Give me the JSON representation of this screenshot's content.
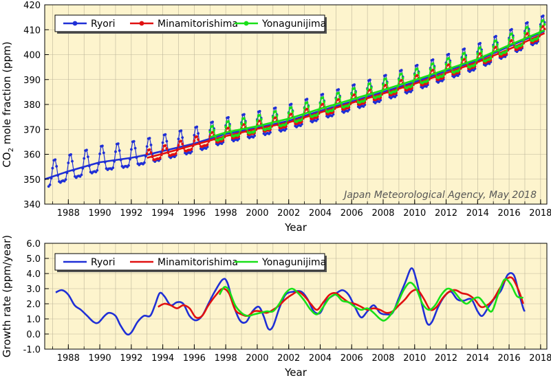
{
  "chart_data": [
    {
      "type": "line",
      "ylabel_prefix": "CO",
      "ylabel_sub": "2",
      "ylabel_suffix": " mole fraction (ppm)",
      "xlabel": "Year",
      "annotation": "Japan Meteorological Agency, May 2018",
      "xlim": [
        1986.5,
        2018.4
      ],
      "ylim": [
        340,
        420
      ],
      "xticks": [
        1988,
        1990,
        1992,
        1994,
        1996,
        1998,
        2000,
        2002,
        2004,
        2006,
        2008,
        2010,
        2012,
        2014,
        2016,
        2018
      ],
      "yticks": [
        340,
        350,
        360,
        370,
        380,
        390,
        400,
        410,
        420
      ],
      "grid": true,
      "legend_position": "top-left",
      "series": [
        {
          "name": "Ryori",
          "color": "#1f2fd6",
          "marker": "circle",
          "start": 1986.75,
          "end": 2018.25,
          "trend": [
            [
              1986.5,
              350.0
            ],
            [
              1988.0,
              353.2
            ],
            [
              1990.0,
              356.8
            ],
            [
              1992.0,
              358.6
            ],
            [
              1993.0,
              359.8
            ],
            [
              1994.0,
              361.3
            ],
            [
              1996.0,
              364.3
            ],
            [
              1998.0,
              368.2
            ],
            [
              2000.0,
              370.6
            ],
            [
              2002.0,
              373.4
            ],
            [
              2004.0,
              377.4
            ],
            [
              2006.0,
              381.2
            ],
            [
              2008.0,
              385.0
            ],
            [
              2010.0,
              389.0
            ],
            [
              2012.0,
              393.4
            ],
            [
              2014.0,
              397.7
            ],
            [
              2016.0,
              403.3
            ],
            [
              2018.25,
              409.4
            ]
          ],
          "amplitude": 6.8
        },
        {
          "name": "Minamitorishima",
          "color": "#e01010",
          "marker": "circle",
          "start": 1993.0,
          "end": 2018.25,
          "trend": [
            [
              1993.0,
              358.6
            ],
            [
              1994.0,
              360.2
            ],
            [
              1996.0,
              363.8
            ],
            [
              1998.0,
              367.3
            ],
            [
              2000.0,
              370.2
            ],
            [
              2002.0,
              372.8
            ],
            [
              2004.0,
              376.8
            ],
            [
              2006.0,
              380.6
            ],
            [
              2008.0,
              384.4
            ],
            [
              2010.0,
              388.3
            ],
            [
              2012.0,
              392.6
            ],
            [
              2014.0,
              397.0
            ],
            [
              2016.0,
              402.2
            ],
            [
              2018.25,
              408.6
            ]
          ],
          "amplitude": 3.2
        },
        {
          "name": "Yonagunijima",
          "color": "#18e018",
          "marker": "circle",
          "start": 1997.0,
          "end": 2018.25,
          "trend": [
            [
              1997.0,
              366.8
            ],
            [
              1998.0,
              368.8
            ],
            [
              2000.0,
              371.3
            ],
            [
              2002.0,
              374.3
            ],
            [
              2004.0,
              378.3
            ],
            [
              2006.0,
              382.0
            ],
            [
              2008.0,
              385.8
            ],
            [
              2010.0,
              389.8
            ],
            [
              2012.0,
              394.0
            ],
            [
              2014.0,
              398.2
            ],
            [
              2016.0,
              403.8
            ],
            [
              2018.25,
              409.8
            ]
          ],
          "amplitude": 4.4
        }
      ]
    },
    {
      "type": "line",
      "ylabel": "Growth rate (ppm/year)",
      "xlabel": "Year",
      "xlim": [
        1986.5,
        2018.4
      ],
      "ylim": [
        -1.0,
        6.0
      ],
      "xticks": [
        1988,
        1990,
        1992,
        1994,
        1996,
        1998,
        2000,
        2002,
        2004,
        2006,
        2008,
        2010,
        2012,
        2014,
        2016,
        2018
      ],
      "yticks": [
        -1.0,
        0.0,
        1.0,
        2.0,
        3.0,
        4.0,
        5.0,
        6.0
      ],
      "grid": true,
      "legend_position": "top-left",
      "series": [
        {
          "name": "Ryori",
          "color": "#1f2fd6",
          "points": [
            [
              1987.2,
              2.75
            ],
            [
              1987.6,
              2.9
            ],
            [
              1988.0,
              2.6
            ],
            [
              1988.4,
              1.9
            ],
            [
              1988.8,
              1.6
            ],
            [
              1989.2,
              1.2
            ],
            [
              1989.6,
              0.8
            ],
            [
              1989.9,
              0.75
            ],
            [
              1990.3,
              1.2
            ],
            [
              1990.6,
              1.4
            ],
            [
              1991.0,
              1.2
            ],
            [
              1991.3,
              0.6
            ],
            [
              1991.7,
              0.0
            ],
            [
              1992.0,
              0.1
            ],
            [
              1992.4,
              0.8
            ],
            [
              1992.8,
              1.2
            ],
            [
              1993.2,
              1.2
            ],
            [
              1993.5,
              1.9
            ],
            [
              1993.8,
              2.7
            ],
            [
              1994.1,
              2.5
            ],
            [
              1994.5,
              1.9
            ],
            [
              1994.9,
              2.1
            ],
            [
              1995.3,
              2.0
            ],
            [
              1995.7,
              1.2
            ],
            [
              1996.1,
              0.9
            ],
            [
              1996.5,
              1.2
            ],
            [
              1996.9,
              2.0
            ],
            [
              1997.3,
              2.8
            ],
            [
              1997.8,
              3.6
            ],
            [
              1998.1,
              3.4
            ],
            [
              1998.5,
              1.9
            ],
            [
              1998.9,
              0.9
            ],
            [
              1999.3,
              0.8
            ],
            [
              1999.7,
              1.5
            ],
            [
              2000.1,
              1.8
            ],
            [
              2000.4,
              1.2
            ],
            [
              2000.7,
              0.35
            ],
            [
              2001.0,
              0.5
            ],
            [
              2001.4,
              1.7
            ],
            [
              2001.8,
              2.6
            ],
            [
              2002.3,
              2.8
            ],
            [
              2002.8,
              2.8
            ],
            [
              2003.2,
              2.3
            ],
            [
              2003.6,
              1.5
            ],
            [
              2004.0,
              1.4
            ],
            [
              2004.4,
              2.2
            ],
            [
              2004.9,
              2.6
            ],
            [
              2005.4,
              2.9
            ],
            [
              2005.8,
              2.6
            ],
            [
              2006.2,
              1.8
            ],
            [
              2006.6,
              1.1
            ],
            [
              2007.0,
              1.5
            ],
            [
              2007.4,
              1.9
            ],
            [
              2007.8,
              1.4
            ],
            [
              2008.2,
              1.3
            ],
            [
              2008.6,
              1.4
            ],
            [
              2009.0,
              2.4
            ],
            [
              2009.4,
              3.4
            ],
            [
              2009.8,
              4.35
            ],
            [
              2010.1,
              3.6
            ],
            [
              2010.5,
              1.8
            ],
            [
              2010.8,
              0.7
            ],
            [
              2011.1,
              0.8
            ],
            [
              2011.5,
              1.8
            ],
            [
              2011.9,
              2.5
            ],
            [
              2012.3,
              2.8
            ],
            [
              2012.7,
              2.3
            ],
            [
              2013.1,
              2.2
            ],
            [
              2013.6,
              2.3
            ],
            [
              2014.0,
              1.5
            ],
            [
              2014.3,
              1.2
            ],
            [
              2014.7,
              1.8
            ],
            [
              2015.1,
              2.4
            ],
            [
              2015.5,
              2.9
            ],
            [
              2015.9,
              3.9
            ],
            [
              2016.3,
              3.9
            ],
            [
              2016.6,
              2.8
            ],
            [
              2016.9,
              1.7
            ],
            [
              2017.0,
              1.5
            ]
          ]
        },
        {
          "name": "Minamitorishima",
          "color": "#e01010",
          "points": [
            [
              1993.7,
              1.8
            ],
            [
              1994.1,
              2.0
            ],
            [
              1994.5,
              1.9
            ],
            [
              1994.9,
              1.7
            ],
            [
              1995.3,
              1.9
            ],
            [
              1995.7,
              1.7
            ],
            [
              1996.1,
              1.1
            ],
            [
              1996.5,
              1.2
            ],
            [
              1996.9,
              1.9
            ],
            [
              1997.4,
              2.6
            ],
            [
              1997.8,
              3.0
            ],
            [
              1998.2,
              2.7
            ],
            [
              1998.6,
              1.6
            ],
            [
              1999.0,
              1.3
            ],
            [
              1999.4,
              1.2
            ],
            [
              1999.8,
              1.5
            ],
            [
              2000.2,
              1.5
            ],
            [
              2000.6,
              1.4
            ],
            [
              2001.0,
              1.6
            ],
            [
              2001.4,
              1.9
            ],
            [
              2001.8,
              2.3
            ],
            [
              2002.2,
              2.6
            ],
            [
              2002.6,
              2.8
            ],
            [
              2003.0,
              2.5
            ],
            [
              2003.4,
              2.0
            ],
            [
              2003.8,
              1.6
            ],
            [
              2004.2,
              2.1
            ],
            [
              2004.6,
              2.6
            ],
            [
              2005.0,
              2.7
            ],
            [
              2005.4,
              2.4
            ],
            [
              2005.8,
              2.1
            ],
            [
              2006.2,
              2.0
            ],
            [
              2006.6,
              1.8
            ],
            [
              2007.0,
              1.6
            ],
            [
              2007.4,
              1.7
            ],
            [
              2007.8,
              1.6
            ],
            [
              2008.2,
              1.4
            ],
            [
              2008.6,
              1.5
            ],
            [
              2009.0,
              1.9
            ],
            [
              2009.4,
              2.3
            ],
            [
              2009.8,
              2.8
            ],
            [
              2010.2,
              2.9
            ],
            [
              2010.6,
              2.3
            ],
            [
              2011.0,
              1.6
            ],
            [
              2011.4,
              1.8
            ],
            [
              2011.8,
              2.4
            ],
            [
              2012.2,
              2.8
            ],
            [
              2012.6,
              2.9
            ],
            [
              2013.0,
              2.7
            ],
            [
              2013.4,
              2.6
            ],
            [
              2013.8,
              2.3
            ],
            [
              2014.2,
              1.8
            ],
            [
              2014.6,
              1.9
            ],
            [
              2015.0,
              2.3
            ],
            [
              2015.4,
              3.0
            ],
            [
              2015.8,
              3.6
            ],
            [
              2016.2,
              3.7
            ],
            [
              2016.6,
              2.9
            ],
            [
              2016.9,
              2.0
            ]
          ]
        },
        {
          "name": "Yonagunijima",
          "color": "#18e018",
          "points": [
            [
              1997.6,
              2.6
            ],
            [
              1997.9,
              3.1
            ],
            [
              1998.2,
              2.9
            ],
            [
              1998.6,
              1.9
            ],
            [
              1999.0,
              1.4
            ],
            [
              1999.4,
              1.2
            ],
            [
              1999.8,
              1.3
            ],
            [
              2000.2,
              1.4
            ],
            [
              2000.6,
              1.5
            ],
            [
              2001.0,
              1.5
            ],
            [
              2001.4,
              2.0
            ],
            [
              2001.8,
              2.7
            ],
            [
              2002.2,
              3.0
            ],
            [
              2002.6,
              2.7
            ],
            [
              2003.0,
              2.2
            ],
            [
              2003.4,
              1.6
            ],
            [
              2003.8,
              1.3
            ],
            [
              2004.2,
              1.8
            ],
            [
              2004.6,
              2.4
            ],
            [
              2005.0,
              2.6
            ],
            [
              2005.4,
              2.2
            ],
            [
              2005.8,
              2.1
            ],
            [
              2006.2,
              1.8
            ],
            [
              2006.6,
              1.6
            ],
            [
              2007.0,
              1.7
            ],
            [
              2007.4,
              1.4
            ],
            [
              2007.8,
              1.0
            ],
            [
              2008.1,
              0.9
            ],
            [
              2008.5,
              1.3
            ],
            [
              2008.9,
              2.0
            ],
            [
              2009.3,
              2.9
            ],
            [
              2009.7,
              3.4
            ],
            [
              2010.1,
              3.0
            ],
            [
              2010.5,
              2.0
            ],
            [
              2010.9,
              1.6
            ],
            [
              2011.3,
              1.9
            ],
            [
              2011.7,
              2.6
            ],
            [
              2012.1,
              3.0
            ],
            [
              2012.5,
              2.8
            ],
            [
              2012.9,
              2.3
            ],
            [
              2013.3,
              2.0
            ],
            [
              2013.7,
              2.3
            ],
            [
              2014.1,
              2.4
            ],
            [
              2014.5,
              1.9
            ],
            [
              2014.9,
              1.5
            ],
            [
              2015.3,
              2.6
            ],
            [
              2015.7,
              3.6
            ],
            [
              2016.1,
              3.3
            ],
            [
              2016.5,
              2.5
            ],
            [
              2016.9,
              2.4
            ]
          ]
        }
      ]
    }
  ]
}
